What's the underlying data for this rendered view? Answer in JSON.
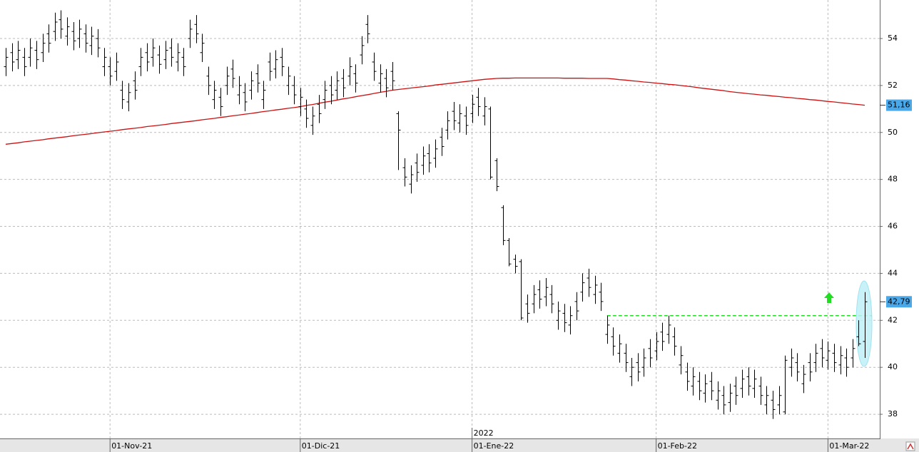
{
  "chart_data": {
    "type": "ohlc",
    "color": "#000000",
    "grid": true,
    "ylim": [
      36.97,
      55.64
    ],
    "yticks": [
      38,
      40,
      42,
      44,
      46,
      48,
      50,
      52,
      54
    ],
    "xticks": [
      {
        "value": 17,
        "label": "01-Nov-21"
      },
      {
        "value": 48,
        "label": "01-Dic-21"
      },
      {
        "value": 76,
        "label": "01-Ene-22"
      },
      {
        "value": 106,
        "label": "01-Feb-22"
      },
      {
        "value": 134,
        "label": "01-Mar-22"
      }
    ],
    "year_mark": {
      "value": 76,
      "label": "2022"
    },
    "last_labels": [
      {
        "value": 51.16,
        "label": "51,16"
      },
      {
        "value": 42.79,
        "label": "42,79"
      }
    ],
    "level": {
      "value": 42.2,
      "color": "#22dd22"
    },
    "ohlc": [
      [
        52.8,
        53.6,
        52.4,
        53.2
      ],
      [
        53.4,
        53.8,
        52.6,
        53.0
      ],
      [
        53.1,
        53.9,
        52.7,
        53.5
      ],
      [
        53.2,
        53.6,
        52.4,
        52.8
      ],
      [
        53.2,
        54.0,
        52.8,
        53.6
      ],
      [
        53.5,
        53.9,
        52.7,
        53.1
      ],
      [
        53.4,
        54.2,
        53.0,
        53.8
      ],
      [
        54.2,
        54.6,
        53.4,
        53.8
      ],
      [
        54.3,
        55.1,
        53.9,
        54.7
      ],
      [
        54.8,
        55.2,
        54.0,
        54.4
      ],
      [
        54.1,
        54.9,
        53.7,
        54.5
      ],
      [
        54.3,
        54.7,
        53.5,
        53.9
      ],
      [
        54.0,
        54.8,
        53.6,
        54.4
      ],
      [
        54.2,
        54.6,
        53.4,
        53.8
      ],
      [
        53.7,
        54.5,
        53.3,
        54.1
      ],
      [
        54.0,
        54.4,
        53.2,
        53.6
      ],
      [
        52.8,
        53.6,
        52.4,
        53.2
      ],
      [
        52.8,
        53.2,
        52.0,
        52.4
      ],
      [
        52.6,
        53.4,
        52.2,
        53.0
      ],
      [
        51.8,
        52.2,
        51.0,
        51.4
      ],
      [
        51.3,
        52.1,
        50.9,
        51.7
      ],
      [
        52.2,
        52.6,
        51.4,
        51.8
      ],
      [
        52.8,
        53.6,
        52.4,
        53.2
      ],
      [
        53.4,
        53.8,
        52.6,
        53.0
      ],
      [
        53.2,
        54.0,
        52.8,
        53.6
      ],
      [
        53.3,
        53.7,
        52.5,
        52.9
      ],
      [
        53.1,
        53.9,
        52.7,
        53.5
      ],
      [
        53.6,
        54.0,
        52.8,
        53.2
      ],
      [
        53.0,
        53.8,
        52.6,
        53.4
      ],
      [
        53.2,
        53.6,
        52.4,
        52.8
      ],
      [
        54.0,
        54.8,
        53.6,
        54.4
      ],
      [
        54.6,
        55.0,
        53.8,
        54.2
      ],
      [
        53.4,
        54.2,
        53.0,
        53.8
      ],
      [
        52.4,
        52.8,
        51.6,
        52.0
      ],
      [
        51.4,
        52.2,
        51.0,
        51.8
      ],
      [
        51.5,
        51.9,
        50.7,
        51.1
      ],
      [
        52.0,
        52.8,
        51.6,
        52.4
      ],
      [
        52.7,
        53.1,
        51.9,
        52.3
      ],
      [
        51.6,
        52.4,
        51.2,
        52.0
      ],
      [
        51.7,
        52.1,
        50.9,
        51.3
      ],
      [
        51.8,
        52.6,
        51.4,
        52.2
      ],
      [
        52.5,
        52.9,
        51.7,
        52.1
      ],
      [
        51.4,
        52.2,
        51.0,
        51.8
      ],
      [
        53.0,
        53.4,
        52.2,
        52.6
      ],
      [
        52.7,
        53.5,
        52.3,
        53.1
      ],
      [
        53.2,
        53.6,
        52.4,
        52.8
      ],
      [
        52.0,
        52.8,
        51.6,
        52.4
      ],
      [
        52.0,
        52.4,
        51.2,
        51.6
      ],
      [
        51.1,
        51.9,
        50.7,
        51.5
      ],
      [
        51.0,
        51.4,
        50.2,
        50.6
      ],
      [
        50.3,
        51.1,
        49.9,
        50.7
      ],
      [
        51.2,
        51.6,
        50.4,
        50.8
      ],
      [
        51.4,
        52.2,
        51.0,
        51.8
      ],
      [
        52.0,
        52.4,
        51.2,
        51.6
      ],
      [
        51.8,
        52.6,
        51.4,
        52.2
      ],
      [
        52.3,
        52.7,
        51.5,
        51.9
      ],
      [
        52.4,
        53.2,
        52.0,
        52.8
      ],
      [
        52.5,
        52.9,
        51.7,
        52.1
      ],
      [
        53.3,
        54.1,
        52.9,
        53.7
      ],
      [
        54.6,
        55.0,
        53.8,
        54.2
      ],
      [
        53.0,
        53.4,
        52.2,
        52.6
      ],
      [
        52.1,
        52.9,
        51.7,
        52.5
      ],
      [
        52.3,
        52.7,
        51.5,
        51.9
      ],
      [
        52.6,
        53.0,
        51.8,
        52.2
      ],
      [
        50.8,
        50.9,
        48.4,
        50.1
      ],
      [
        48.5,
        48.9,
        47.7,
        48.1
      ],
      [
        47.8,
        48.6,
        47.4,
        48.2
      ],
      [
        48.7,
        49.1,
        47.9,
        48.3
      ],
      [
        48.6,
        49.4,
        48.2,
        49.0
      ],
      [
        49.1,
        49.5,
        48.3,
        48.7
      ],
      [
        48.9,
        49.7,
        48.5,
        49.3
      ],
      [
        49.8,
        50.2,
        49.0,
        49.4
      ],
      [
        50.1,
        50.9,
        49.7,
        50.5
      ],
      [
        50.9,
        51.3,
        50.1,
        50.5
      ],
      [
        50.4,
        51.2,
        50.0,
        50.8
      ],
      [
        50.7,
        51.1,
        49.9,
        50.3
      ],
      [
        50.8,
        51.6,
        50.4,
        51.2
      ],
      [
        51.5,
        51.9,
        50.7,
        51.1
      ],
      [
        50.7,
        51.5,
        50.3,
        51.1
      ],
      [
        51.0,
        51.1,
        48.0,
        48.1
      ],
      [
        48.8,
        48.9,
        47.5,
        47.7
      ],
      [
        46.8,
        46.9,
        45.2,
        45.4
      ],
      [
        45.4,
        45.5,
        44.3,
        44.4
      ],
      [
        44.6,
        44.8,
        44.0,
        44.3
      ],
      [
        44.5,
        44.6,
        42.0,
        42.1
      ],
      [
        42.7,
        43.1,
        41.9,
        42.3
      ],
      [
        42.7,
        43.5,
        42.3,
        43.1
      ],
      [
        43.3,
        43.7,
        42.5,
        42.9
      ],
      [
        43.0,
        43.8,
        42.6,
        43.4
      ],
      [
        43.1,
        43.5,
        42.3,
        42.7
      ],
      [
        42.0,
        42.8,
        41.6,
        42.4
      ],
      [
        42.3,
        42.7,
        41.5,
        41.9
      ],
      [
        41.8,
        42.6,
        41.4,
        42.2
      ],
      [
        42.8,
        43.2,
        42.0,
        42.4
      ],
      [
        43.2,
        44.0,
        42.8,
        43.6
      ],
      [
        43.8,
        44.2,
        43.0,
        43.4
      ],
      [
        43.1,
        43.9,
        42.7,
        43.5
      ],
      [
        43.2,
        43.6,
        42.4,
        42.8
      ],
      [
        41.4,
        42.2,
        41.0,
        41.8
      ],
      [
        41.3,
        41.7,
        40.5,
        40.9
      ],
      [
        40.6,
        41.4,
        40.2,
        41.0
      ],
      [
        40.6,
        41.0,
        39.8,
        40.2
      ],
      [
        39.6,
        40.4,
        39.2,
        40.0
      ],
      [
        40.2,
        40.6,
        39.4,
        39.8
      ],
      [
        40.0,
        40.8,
        39.6,
        40.4
      ],
      [
        40.8,
        41.2,
        40.0,
        40.4
      ],
      [
        40.7,
        41.5,
        40.3,
        41.1
      ],
      [
        41.5,
        41.9,
        40.7,
        41.1
      ],
      [
        41.4,
        42.2,
        41.0,
        41.8
      ],
      [
        41.3,
        41.7,
        40.5,
        40.9
      ],
      [
        40.1,
        40.9,
        39.7,
        40.5
      ],
      [
        39.8,
        40.2,
        39.0,
        39.4
      ],
      [
        39.2,
        40.0,
        38.8,
        39.6
      ],
      [
        39.4,
        39.8,
        38.6,
        39.0
      ],
      [
        38.9,
        39.7,
        38.5,
        39.3
      ],
      [
        39.4,
        39.8,
        38.6,
        39.0
      ],
      [
        38.6,
        39.4,
        38.2,
        39.0
      ],
      [
        38.8,
        39.2,
        38.0,
        38.4
      ],
      [
        38.5,
        39.3,
        38.1,
        38.9
      ],
      [
        39.2,
        39.6,
        38.4,
        38.8
      ],
      [
        39.1,
        39.9,
        38.7,
        39.5
      ],
      [
        39.6,
        40.0,
        38.8,
        39.2
      ],
      [
        39.1,
        39.9,
        38.7,
        39.5
      ],
      [
        39.2,
        39.6,
        38.4,
        38.8
      ],
      [
        38.4,
        39.2,
        38.0,
        38.8
      ],
      [
        38.6,
        39.0,
        37.8,
        38.2
      ],
      [
        38.4,
        39.2,
        38.0,
        38.8
      ],
      [
        38.1,
        40.5,
        38.0,
        40.3
      ],
      [
        40.0,
        40.8,
        39.6,
        40.4
      ],
      [
        40.2,
        40.6,
        39.4,
        39.8
      ],
      [
        39.3,
        40.1,
        38.9,
        39.7
      ],
      [
        40.2,
        40.6,
        39.4,
        39.8
      ],
      [
        40.2,
        41.0,
        39.8,
        40.6
      ],
      [
        40.8,
        41.2,
        40.0,
        40.4
      ],
      [
        40.3,
        41.1,
        39.9,
        40.7
      ],
      [
        40.6,
        41.0,
        39.8,
        40.2
      ],
      [
        40.1,
        40.9,
        39.7,
        40.5
      ],
      [
        40.4,
        40.8,
        39.6,
        40.0
      ],
      [
        40.4,
        41.2,
        40.0,
        40.8
      ],
      [
        41.3,
        42.0,
        40.9,
        41.0
      ],
      [
        41.1,
        43.2,
        40.4,
        42.79
      ]
    ],
    "ma": {
      "color": "#cc1111",
      "values": [
        49.5,
        49.53,
        49.56,
        49.6,
        49.63,
        49.66,
        49.69,
        49.73,
        49.76,
        49.79,
        49.82,
        49.86,
        49.89,
        49.92,
        49.95,
        49.99,
        50.02,
        50.05,
        50.08,
        50.12,
        50.15,
        50.18,
        50.21,
        50.25,
        50.28,
        50.31,
        50.34,
        50.38,
        50.41,
        50.44,
        50.47,
        50.5,
        50.54,
        50.57,
        50.6,
        50.64,
        50.67,
        50.71,
        50.74,
        50.78,
        50.81,
        50.85,
        50.89,
        50.92,
        50.96,
        50.99,
        51.03,
        51.06,
        51.1,
        51.15,
        51.19,
        51.24,
        51.29,
        51.33,
        51.38,
        51.43,
        51.47,
        51.52,
        51.57,
        51.61,
        51.66,
        51.71,
        51.75,
        51.8,
        51.83,
        51.86,
        51.89,
        51.92,
        51.95,
        51.98,
        52.02,
        52.05,
        52.08,
        52.11,
        52.14,
        52.17,
        52.2,
        52.23,
        52.26,
        52.28,
        52.3,
        52.31,
        52.31,
        52.32,
        52.32,
        52.32,
        52.32,
        52.32,
        52.32,
        52.32,
        52.32,
        52.31,
        52.31,
        52.31,
        52.31,
        52.3,
        52.3,
        52.3,
        52.3,
        52.28,
        52.25,
        52.23,
        52.2,
        52.18,
        52.15,
        52.13,
        52.1,
        52.08,
        52.05,
        52.03,
        52.0,
        51.97,
        51.94,
        51.9,
        51.87,
        51.84,
        51.81,
        51.78,
        51.74,
        51.71,
        51.68,
        51.65,
        51.63,
        51.6,
        51.58,
        51.55,
        51.53,
        51.5,
        51.48,
        51.45,
        51.43,
        51.4,
        51.38,
        51.35,
        51.32,
        51.3,
        51.27,
        51.24,
        51.21,
        51.19,
        51.16
      ]
    }
  }
}
